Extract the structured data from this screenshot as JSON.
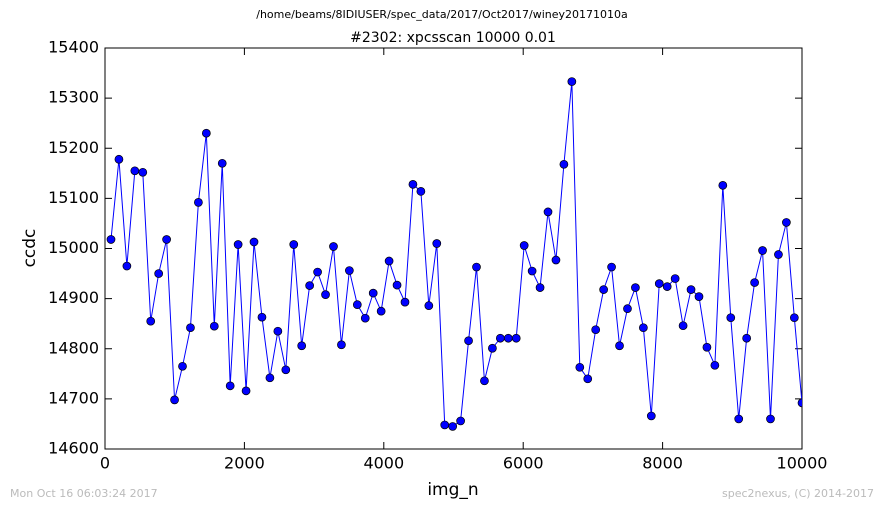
{
  "chart_data": {
    "type": "line",
    "suptitle": "/home/beams/8IDIUSER/spec_data/2017/Oct2017/winey20171010a",
    "title": "#2302: xpcsscan 10000 0.01",
    "xlabel": "img_n",
    "ylabel": "ccdc",
    "timestamp": "Mon Oct 16 06:03:24 2017",
    "credit": "spec2nexus, (C) 2014-2017",
    "xlim": [
      0,
      10000
    ],
    "xticks": [
      0,
      2000,
      4000,
      6000,
      8000,
      10000
    ],
    "ylim": [
      14600,
      15400
    ],
    "yticks": [
      14600,
      14700,
      14800,
      14900,
      15000,
      15100,
      15200,
      15300,
      15400
    ],
    "grid": false,
    "series": [
      {
        "color": "#0000ff",
        "x": [
          86,
          200,
          314,
          428,
          542,
          656,
          770,
          884,
          998,
          1112,
          1226,
          1340,
          1454,
          1568,
          1682,
          1796,
          1910,
          2024,
          2138,
          2252,
          2366,
          2480,
          2594,
          2708,
          2822,
          2936,
          3050,
          3164,
          3278,
          3392,
          3506,
          3620,
          3734,
          3848,
          3962,
          4076,
          4190,
          4304,
          4418,
          4532,
          4646,
          4760,
          4874,
          4988,
          5102,
          5216,
          5330,
          5444,
          5558,
          5672,
          5786,
          5900,
          6014,
          6128,
          6242,
          6356,
          6470,
          6584,
          6698,
          6812,
          6926,
          7040,
          7154,
          7268,
          7382,
          7496,
          7610,
          7724,
          7838,
          7952,
          8066,
          8180,
          8294,
          8408,
          8522,
          8636,
          8750,
          8864,
          8978,
          9092,
          9206,
          9320,
          9434,
          9548,
          9662,
          9776,
          9890,
          10000
        ],
        "values": [
          15018,
          15178,
          14965,
          15155,
          15152,
          14855,
          14950,
          15018,
          14698,
          14765,
          14842,
          15092,
          15230,
          14845,
          15170,
          14726,
          15008,
          14716,
          15013,
          14863,
          14742,
          14835,
          14758,
          15008,
          14806,
          14926,
          14953,
          14908,
          15004,
          14808,
          14956,
          14888,
          14861,
          14911,
          14875,
          14975,
          14927,
          14893,
          15128,
          15114,
          14886,
          15010,
          14648,
          14645,
          14656,
          14816,
          14963,
          14736,
          14801,
          14821,
          14821,
          14821,
          15006,
          14955,
          14922,
          15073,
          14977,
          15168,
          15333,
          14763,
          14740,
          14838,
          14918,
          14963,
          14806,
          14880,
          14922,
          14842,
          14666,
          14930,
          14924,
          14940,
          14846,
          14918,
          14904,
          14803,
          14767,
          15126,
          14862,
          14660,
          14821,
          14932,
          14996,
          14660,
          14988,
          15052,
          14862,
          14692
        ]
      }
    ]
  }
}
